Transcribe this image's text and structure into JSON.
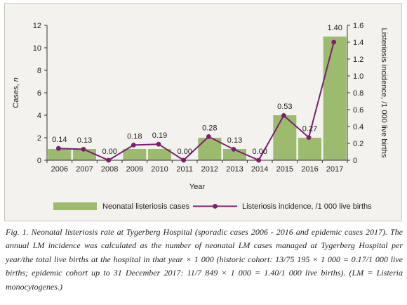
{
  "chart_data": {
    "type": "bar+line",
    "categories": [
      "2006",
      "2007",
      "2008",
      "2009",
      "2010",
      "2011",
      "2012",
      "2013",
      "2014",
      "2015",
      "2016",
      "2017"
    ],
    "series": [
      {
        "name": "Neonatal listeriosis cases",
        "type": "bar",
        "axis": "left",
        "values": [
          1,
          1,
          0,
          1,
          1,
          0,
          2,
          1,
          0,
          4,
          2,
          11
        ]
      },
      {
        "name": "Listeriosis incidence, /1 000 live births",
        "type": "line",
        "axis": "right",
        "values": [
          0.14,
          0.13,
          0.0,
          0.18,
          0.19,
          0.0,
          0.28,
          0.13,
          0.0,
          0.53,
          0.27,
          1.4
        ],
        "labels": [
          "0.14",
          "0.13",
          "0.00",
          "0.18",
          "0.19",
          "0.00",
          "0.28",
          "0.13",
          "0.00",
          "0.53",
          "0.27",
          "1.40"
        ]
      }
    ],
    "xlabel": "Year",
    "ylabel_left": "Cases, ",
    "ylabel_left_italic": "n",
    "ylabel_right": "Listeriosis incidence, /1 000 live births",
    "ylim_left": [
      0,
      12
    ],
    "yticks_left": [
      "0",
      "2",
      "4",
      "6",
      "8",
      "10",
      "12"
    ],
    "ylim_right": [
      0,
      1.6
    ],
    "yticks_right": [
      "0",
      "0.2",
      "0.4",
      "0.6",
      "0.8",
      "1.0",
      "1.2",
      "1.4",
      "1.6"
    ],
    "legend_position": "bottom",
    "grid": false,
    "colors": {
      "bar": "#9dbb6e",
      "line": "#7b1f6e",
      "axis": "#333333"
    }
  },
  "caption": "Fig. 1. Neonatal listeriosis rate at Tygerberg Hospital (sporadic cases 2006 - 2016 and epidemic cases 2017). The annual LM incidence was calculated as the number of neonatal LM cases managed at Tygerberg Hospital per year/the total live births at the hospital in that year × 1 000 (historic cohort: 13/75 195 × 1 000 = 0.17/1 000 live births; epidemic cohort up to 31 December 2017: 11/7 849 × 1 000 = 1.40/1 000 live births). (LM = Listeria monocytogenes.)"
}
